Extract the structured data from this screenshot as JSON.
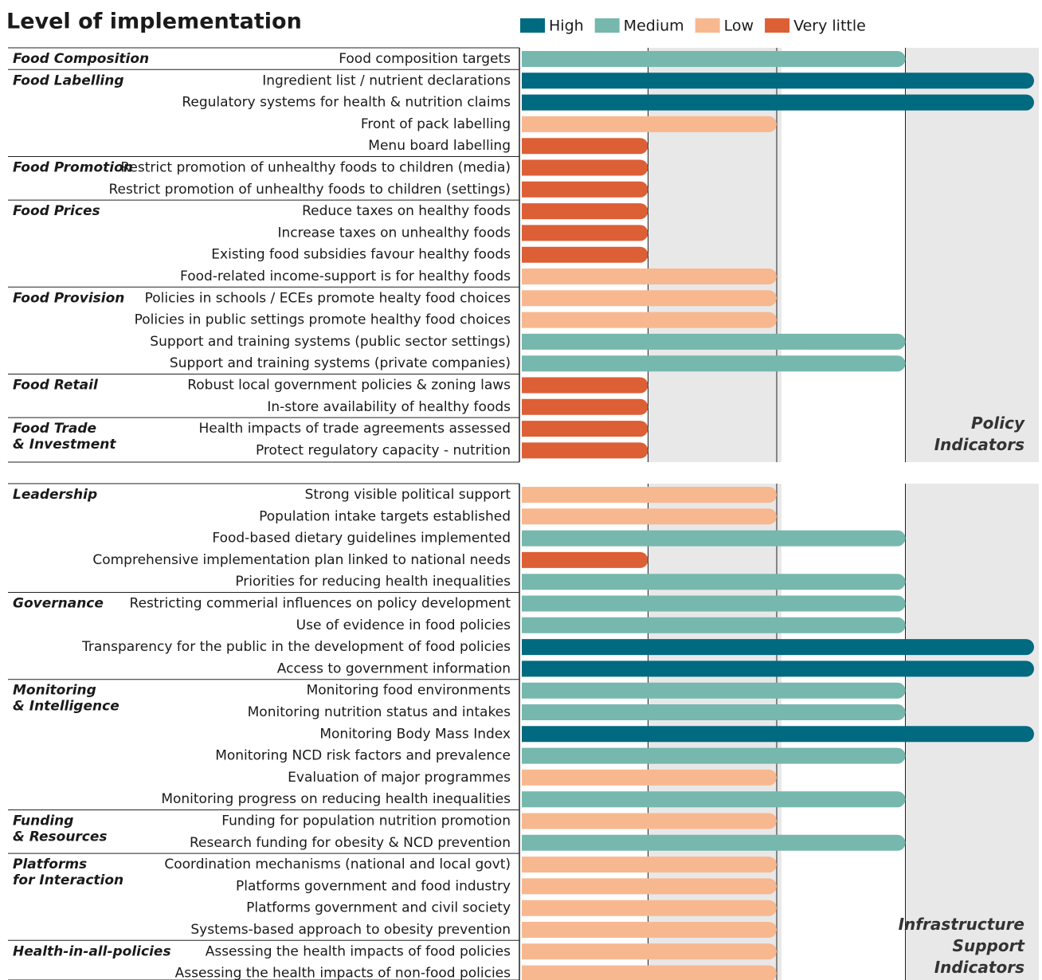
{
  "chart_data": {
    "type": "bar",
    "title": "Level of implementation",
    "legend": [
      {
        "name": "High",
        "color": "#006a80"
      },
      {
        "name": "Medium",
        "color": "#76b8ad"
      },
      {
        "name": "Low",
        "color": "#f8b88f"
      },
      {
        "name": "Very little",
        "color": "#dd5f36"
      }
    ],
    "xlim": [
      0,
      4
    ],
    "xticks": [
      1,
      2,
      3
    ],
    "grid": true,
    "sections": [
      {
        "label": [
          "Policy",
          "Indicators"
        ],
        "groups": [
          {
            "name": [
              "Food Composition"
            ],
            "items": [
              {
                "label": "Food composition targets",
                "value": 3
              }
            ]
          },
          {
            "name": [
              "Food Labelling"
            ],
            "items": [
              {
                "label": "Ingredient list / nutrient declarations",
                "value": 4
              },
              {
                "label": "Regulatory systems for health & nutrition claims",
                "value": 4
              },
              {
                "label": "Front of pack labelling",
                "value": 2
              },
              {
                "label": "Menu board labelling",
                "value": 1
              }
            ]
          },
          {
            "name": [
              "Food Promotion"
            ],
            "items": [
              {
                "label": "Restrict promotion of unhealthy foods to children (media)",
                "value": 1
              },
              {
                "label": "Restrict promotion of unhealthy foods to children (settings)",
                "value": 1
              }
            ]
          },
          {
            "name": [
              "Food Prices"
            ],
            "items": [
              {
                "label": "Reduce taxes on healthy foods",
                "value": 1
              },
              {
                "label": "Increase taxes on unhealthy foods",
                "value": 1
              },
              {
                "label": "Existing food subsidies favour healthy foods",
                "value": 1
              },
              {
                "label": "Food-related income-support is for healthy foods",
                "value": 2
              }
            ]
          },
          {
            "name": [
              "Food Provision"
            ],
            "items": [
              {
                "label": "Policies in schools / ECEs promote healty food choices",
                "value": 2
              },
              {
                "label": "Policies in public settings promote healthy food choices",
                "value": 2
              },
              {
                "label": "Support and training systems (public sector settings)",
                "value": 3
              },
              {
                "label": "Support and training systems (private companies)",
                "value": 3
              }
            ]
          },
          {
            "name": [
              "Food Retail"
            ],
            "items": [
              {
                "label": "Robust local government policies & zoning laws",
                "value": 1
              },
              {
                "label": "In-store availability of healthy foods",
                "value": 1
              }
            ]
          },
          {
            "name": [
              "Food Trade",
              "& Investment"
            ],
            "items": [
              {
                "label": "Health impacts of trade agreements assessed",
                "value": 1
              },
              {
                "label": "Protect regulatory capacity - nutrition",
                "value": 1
              }
            ]
          }
        ]
      },
      {
        "label": [
          "Infrastructure",
          "Support",
          "Indicators"
        ],
        "groups": [
          {
            "name": [
              "Leadership"
            ],
            "items": [
              {
                "label": "Strong visible political support",
                "value": 2
              },
              {
                "label": "Population intake targets established",
                "value": 2
              },
              {
                "label": "Food-based dietary guidelines implemented",
                "value": 3
              },
              {
                "label": "Comprehensive implementation plan linked to national needs",
                "value": 1
              },
              {
                "label": "Priorities for reducing health inequalities",
                "value": 3
              }
            ]
          },
          {
            "name": [
              "Governance"
            ],
            "items": [
              {
                "label": "Restricting commerial influences on policy development",
                "value": 3
              },
              {
                "label": "Use of evidence in food policies",
                "value": 3
              },
              {
                "label": "Transparency for the public in the development of food policies",
                "value": 4
              },
              {
                "label": "Access to government information",
                "value": 4
              }
            ]
          },
          {
            "name": [
              "Monitoring",
              "& Intelligence"
            ],
            "items": [
              {
                "label": "Monitoring food environments",
                "value": 3
              },
              {
                "label": "Monitoring nutrition status and intakes",
                "value": 3
              },
              {
                "label": "Monitoring Body Mass Index",
                "value": 4
              },
              {
                "label": "Monitoring NCD risk factors and prevalence",
                "value": 3
              },
              {
                "label": "Evaluation of major programmes",
                "value": 2
              },
              {
                "label": "Monitoring progress on reducing health inequalities",
                "value": 3
              }
            ]
          },
          {
            "name": [
              "Funding",
              "& Resources"
            ],
            "items": [
              {
                "label": "Funding for population nutrition promotion",
                "value": 2
              },
              {
                "label": "Research funding for obesity & NCD prevention",
                "value": 3
              }
            ]
          },
          {
            "name": [
              "Platforms",
              "for Interaction"
            ],
            "items": [
              {
                "label": "Coordination mechanisms (national and local govt)",
                "value": 2
              },
              {
                "label": "Platforms government and food industry",
                "value": 2
              },
              {
                "label": "Platforms government and civil society",
                "value": 2
              },
              {
                "label": "Systems-based approach to obesity prevention",
                "value": 2
              }
            ]
          },
          {
            "name": [
              "Health-in-all-policies"
            ],
            "items": [
              {
                "label": "Assessing the health impacts of food policies",
                "value": 2
              },
              {
                "label": "Assessing the health impacts of non-food policies",
                "value": 2
              }
            ]
          }
        ]
      }
    ]
  }
}
